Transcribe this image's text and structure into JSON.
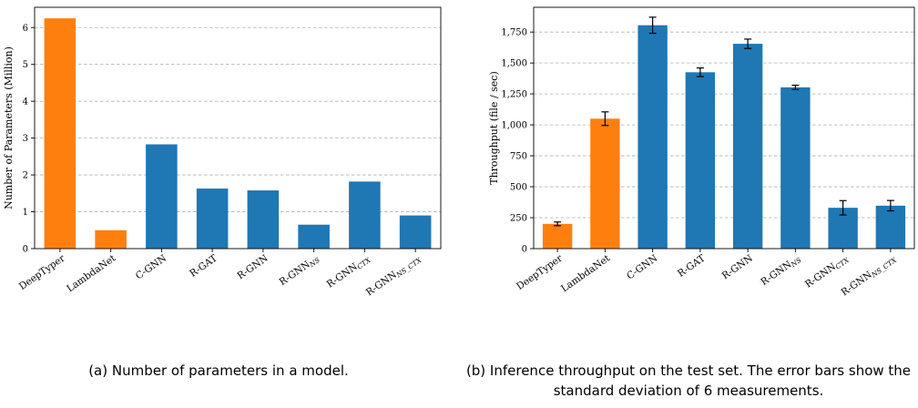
{
  "chart_data": [
    {
      "type": "bar",
      "categories": [
        "DeepTyper",
        "LambdaNet",
        "C-GNN",
        "R-GAT",
        "R-GNN",
        "R-GNN_NS",
        "R-GNN_CTX",
        "R-GNN_NS_CTX"
      ],
      "category_labels": [
        {
          "main": "DeepTyper",
          "sub": ""
        },
        {
          "main": "LambdaNet",
          "sub": ""
        },
        {
          "main": "C-GNN",
          "sub": ""
        },
        {
          "main": "R-GAT",
          "sub": ""
        },
        {
          "main": "R-GNN",
          "sub": ""
        },
        {
          "main": "R-GNN",
          "sub": "NS"
        },
        {
          "main": "R-GNN",
          "sub": "CTX"
        },
        {
          "main": "R-GNN",
          "sub": "NS_CTX"
        }
      ],
      "values": [
        6.25,
        0.5,
        2.83,
        1.63,
        1.58,
        0.65,
        1.82,
        0.9
      ],
      "bar_colors": [
        "#ff7f0e",
        "#ff7f0e",
        "#1f77b4",
        "#1f77b4",
        "#1f77b4",
        "#1f77b4",
        "#1f77b4",
        "#1f77b4"
      ],
      "ylabel": "Number of Parameters (Million)",
      "xlabel": "",
      "ylim": [
        0,
        6.55
      ],
      "yticks": [
        0,
        1,
        2,
        3,
        4,
        5,
        6
      ],
      "grid": "horizontal-dashed",
      "caption": "(a) Number of parameters in a model."
    },
    {
      "type": "bar",
      "categories": [
        "DeepTyper",
        "LambdaNet",
        "C-GNN",
        "R-GAT",
        "R-GNN",
        "R-GNN_NS",
        "R-GNN_CTX",
        "R-GNN_NS_CTX"
      ],
      "category_labels": [
        {
          "main": "DeepTyper",
          "sub": ""
        },
        {
          "main": "LambdaNet",
          "sub": ""
        },
        {
          "main": "C-GNN",
          "sub": ""
        },
        {
          "main": "R-GAT",
          "sub": ""
        },
        {
          "main": "R-GNN",
          "sub": ""
        },
        {
          "main": "R-GNN",
          "sub": "NS"
        },
        {
          "main": "R-GNN",
          "sub": "CTX"
        },
        {
          "main": "R-GNN",
          "sub": "NS_CTX"
        }
      ],
      "values": [
        200,
        1050,
        1805,
        1425,
        1655,
        1303,
        330,
        347
      ],
      "errors": [
        15,
        55,
        65,
        35,
        38,
        17,
        58,
        42
      ],
      "bar_colors": [
        "#ff7f0e",
        "#ff7f0e",
        "#1f77b4",
        "#1f77b4",
        "#1f77b4",
        "#1f77b4",
        "#1f77b4",
        "#1f77b4"
      ],
      "ylabel": "Throughput (file / sec)",
      "xlabel": "",
      "ylim": [
        0,
        1950
      ],
      "yticks": [
        0,
        250,
        500,
        750,
        1000,
        1250,
        1500,
        1750
      ],
      "grid": "horizontal-dashed",
      "caption": "(b) Inference throughput on the test set. The error bars show the standard deviation of 6 measurements."
    }
  ]
}
